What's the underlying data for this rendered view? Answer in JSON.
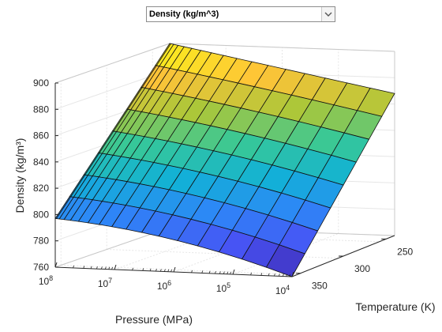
{
  "property_selector": {
    "selected": "Density (kg/m^3)",
    "arrow_icon": "chevron-down-icon"
  },
  "chart_data": {
    "type": "surface",
    "title": "",
    "zlabel": "Density (kg/m³)",
    "xlabel": "Pressure (MPa)",
    "ylabel": "Temperature (K)",
    "x_scale": "log",
    "x_ticks": [
      "10^8",
      "10^7",
      "10^6",
      "10^5",
      "10^4"
    ],
    "y_ticks": [
      "250",
      "300",
      "350"
    ],
    "z_ticks": [
      "760",
      "780",
      "800",
      "820",
      "840",
      "860",
      "880",
      "900"
    ],
    "zlim": [
      760,
      900
    ],
    "grid": true,
    "colormap": "parula",
    "corner_values": [
      {
        "pressure": "1e8",
        "temperature": 360,
        "density": 797
      },
      {
        "pressure": "1e4",
        "temperature": 360,
        "density": 760
      },
      {
        "pressure": "1e4",
        "temperature": 240,
        "density": 868
      },
      {
        "pressure": "1e8",
        "temperature": 240,
        "density": 900
      }
    ]
  }
}
